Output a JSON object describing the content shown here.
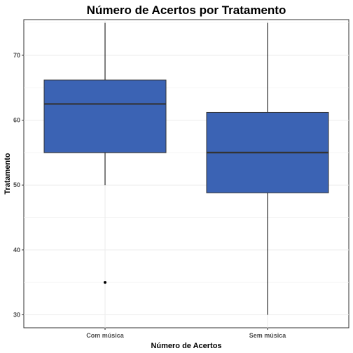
{
  "chart_data": {
    "type": "boxplot",
    "title": "Número de Acertos por Tratamento",
    "xlabel": "Número de Acertos",
    "ylabel": "Tratamento",
    "ylim": [
      28,
      75.5
    ],
    "yticks": [
      30,
      40,
      50,
      60,
      70
    ],
    "grid": true,
    "fill_color": "#3B63B4",
    "categories": [
      "Com música",
      "Sem música"
    ],
    "boxes": [
      {
        "category": "Com música",
        "whisker_low": 50,
        "q1": 55,
        "median": 62.5,
        "q3": 66.2,
        "whisker_high": 75,
        "outliers": [
          35
        ]
      },
      {
        "category": "Sem música",
        "whisker_low": 30,
        "q1": 48.8,
        "median": 55,
        "q3": 61.2,
        "whisker_high": 75,
        "outliers": []
      }
    ]
  }
}
